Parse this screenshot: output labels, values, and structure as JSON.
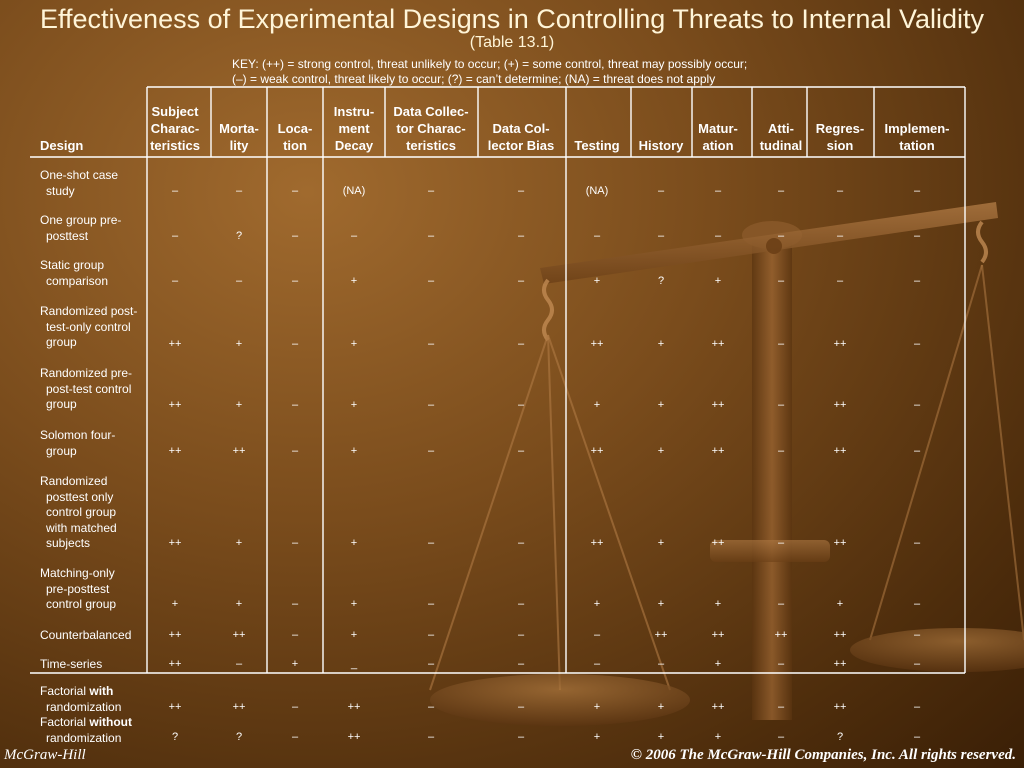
{
  "slide": {
    "title": "Effectiveness of Experimental Designs in Controlling Threats to Internal Validity",
    "subtitle": "(Table 13.1)",
    "key_line1": "KEY: (++) = strong control, threat unlikely to occur; (+) = some control, threat may possibly occur;",
    "key_line2": "(–) = weak control, threat likely to occur; (?) = can’t determine; (NA) = threat does not apply"
  },
  "table": {
    "design_header": "Design",
    "columns": [
      {
        "label": "Subject Charac- teristics",
        "lines": [
          "Subject",
          "Charac-",
          "teristics"
        ]
      },
      {
        "label": "Morta- lity",
        "lines": [
          "Morta-",
          "lity"
        ]
      },
      {
        "label": "Loca- tion",
        "lines": [
          "Loca-",
          "tion"
        ]
      },
      {
        "label": "Instru- ment Decay",
        "lines": [
          "Instru-",
          "ment",
          "Decay"
        ]
      },
      {
        "label": "Data Collec- tor Charac- teristics",
        "lines": [
          "Data Collec-",
          "tor Charac-",
          "teristics"
        ]
      },
      {
        "label": "Data Col- lector Bias",
        "lines": [
          "Data Col-",
          "lector Bias"
        ]
      },
      {
        "label": "Testing",
        "lines": [
          "Testing"
        ]
      },
      {
        "label": "History",
        "lines": [
          "History"
        ]
      },
      {
        "label": "Matur- ation",
        "lines": [
          "Matur-",
          "ation"
        ]
      },
      {
        "label": "Atti- tudinal",
        "lines": [
          "Atti-",
          "tudinal"
        ]
      },
      {
        "label": "Regres- sion",
        "lines": [
          "Regres-",
          "sion"
        ]
      },
      {
        "label": "Implemen- tation",
        "lines": [
          "Implemen-",
          "tation"
        ]
      }
    ],
    "rows": [
      {
        "lines": [
          "One-shot case",
          "study"
        ],
        "values": [
          "–",
          "–",
          "–",
          "(NA)",
          "–",
          "–",
          "(NA)",
          "–",
          "–",
          "–",
          "–",
          "–"
        ]
      },
      {
        "lines": [
          "One group pre-",
          "posttest"
        ],
        "values": [
          "–",
          "?",
          "–",
          "–",
          "–",
          "–",
          "–",
          "–",
          "–",
          "–",
          "–",
          "–"
        ]
      },
      {
        "lines": [
          "Static group",
          "comparison"
        ],
        "values": [
          "–",
          "–",
          "–",
          "+",
          "–",
          "–",
          "+",
          "?",
          "+",
          "–",
          "–",
          "–"
        ]
      },
      {
        "lines": [
          "Randomized post-",
          "test-only control",
          "group"
        ],
        "values": [
          "++",
          "+",
          "–",
          "+",
          "–",
          "–",
          "++",
          "+",
          "++",
          "–",
          "++",
          "–"
        ]
      },
      {
        "lines": [
          "Randomized pre-",
          "post-test control",
          "group"
        ],
        "values": [
          "++",
          "+",
          "–",
          "+",
          "–",
          "–",
          "+",
          "+",
          "++",
          "–",
          "++",
          "–"
        ]
      },
      {
        "lines": [
          "Solomon four-",
          "group"
        ],
        "values": [
          "++",
          "++",
          "–",
          "+",
          "–",
          "–",
          "++",
          "+",
          "++",
          "–",
          "++",
          "–"
        ]
      },
      {
        "lines": [
          "Randomized",
          "posttest only",
          "control group",
          "with matched",
          "subjects"
        ],
        "values": [
          "++",
          "+",
          "–",
          "+",
          "–",
          "–",
          "++",
          "+",
          "++",
          "–",
          "++",
          "–"
        ]
      },
      {
        "lines": [
          "Matching-only",
          "pre-posttest",
          "control group"
        ],
        "values": [
          "+",
          "+",
          "–",
          "+",
          "–",
          "–",
          "+",
          "+",
          "+",
          "–",
          "+",
          "–"
        ]
      },
      {
        "lines": [
          "Counterbalanced"
        ],
        "values": [
          "++",
          "++",
          "–",
          "+",
          "–",
          "–",
          "–",
          "++",
          "++",
          "++",
          "++",
          "–"
        ]
      },
      {
        "lines": [
          "Time-series"
        ],
        "values": [
          "++",
          "–",
          "+",
          "_",
          "–",
          "–",
          "–",
          "–",
          "+",
          "–",
          "++",
          "–"
        ]
      },
      {
        "lines": [
          "Factorial with",
          "randomization"
        ],
        "bold_word": "with",
        "values": [
          "++",
          "++",
          "–",
          "++",
          "–",
          "–",
          "+",
          "+",
          "++",
          "–",
          "++",
          "–"
        ]
      },
      {
        "lines": [
          "Factorial without",
          "randomization"
        ],
        "bold_word": "without",
        "values": [
          "?",
          "?",
          "–",
          "++",
          "–",
          "–",
          "+",
          "+",
          "+",
          "–",
          "?",
          "–"
        ]
      }
    ]
  },
  "footer": {
    "left": "McGraw-Hill",
    "right": "© 2006 The McGraw-Hill Companies, Inc. All rights reserved."
  },
  "colors": {
    "background_dark": "#3a1f06",
    "background_light": "#a06a2e",
    "text": "#ffffff",
    "title": "#fff5d8"
  }
}
